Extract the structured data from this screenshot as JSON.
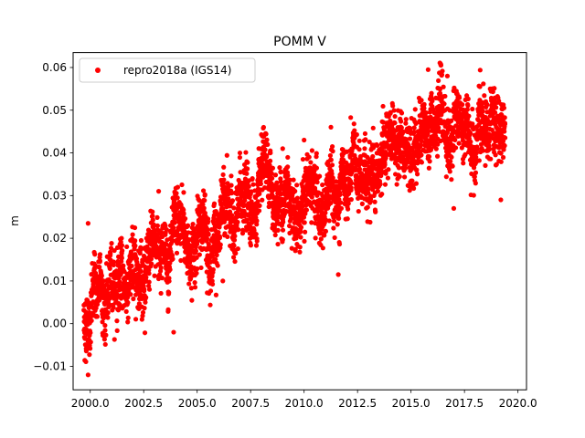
{
  "chart_data": {
    "type": "scatter",
    "title": "POMM V",
    "xlabel": "",
    "ylabel": "m",
    "xlim": [
      1999.2,
      2020.4
    ],
    "ylim": [
      -0.0155,
      0.0635
    ],
    "xticks": [
      2000.0,
      2002.5,
      2005.0,
      2007.5,
      2010.0,
      2012.5,
      2015.0,
      2017.5,
      2020.0
    ],
    "xtick_labels": [
      "2000.0",
      "2002.5",
      "2005.0",
      "2007.5",
      "2010.0",
      "2012.5",
      "2015.0",
      "2017.5",
      "2020.0"
    ],
    "yticks": [
      -0.01,
      0.0,
      0.01,
      0.02,
      0.03,
      0.04,
      0.05,
      0.06
    ],
    "ytick_labels": [
      "−0.01",
      "0.00",
      "0.01",
      "0.02",
      "0.03",
      "0.04",
      "0.05",
      "0.06"
    ],
    "grid": false,
    "legend_position": "top-left",
    "series": [
      {
        "name": "repro2018a (IGS14)",
        "color": "#ff0000",
        "marker": "circle",
        "x_range": [
          1999.7,
          2019.4
        ],
        "trend": [
          {
            "x": 1999.7,
            "y": 0.002
          },
          {
            "x": 2000.5,
            "y": 0.007
          },
          {
            "x": 2001.5,
            "y": 0.01
          },
          {
            "x": 2002.5,
            "y": 0.014
          },
          {
            "x": 2003.5,
            "y": 0.018
          },
          {
            "x": 2004.5,
            "y": 0.018
          },
          {
            "x": 2005.5,
            "y": 0.022
          },
          {
            "x": 2006.5,
            "y": 0.025
          },
          {
            "x": 2007.5,
            "y": 0.028
          },
          {
            "x": 2008.5,
            "y": 0.03
          },
          {
            "x": 2009.5,
            "y": 0.03
          },
          {
            "x": 2010.5,
            "y": 0.029
          },
          {
            "x": 2011.5,
            "y": 0.027
          },
          {
            "x": 2012.0,
            "y": 0.03
          },
          {
            "x": 2012.5,
            "y": 0.034
          },
          {
            "x": 2013.5,
            "y": 0.038
          },
          {
            "x": 2014.5,
            "y": 0.042
          },
          {
            "x": 2015.5,
            "y": 0.045
          },
          {
            "x": 2016.5,
            "y": 0.046
          },
          {
            "x": 2017.5,
            "y": 0.044
          },
          {
            "x": 2018.5,
            "y": 0.045
          },
          {
            "x": 2019.4,
            "y": 0.044
          }
        ],
        "scatter_sd": 0.0035,
        "outliers": [
          {
            "x": 1999.9,
            "y": 0.0235
          },
          {
            "x": 1999.9,
            "y": -0.012
          },
          {
            "x": 2003.2,
            "y": 0.031
          },
          {
            "x": 2003.9,
            "y": -0.002
          },
          {
            "x": 2006.2,
            "y": 0.01
          },
          {
            "x": 2007.0,
            "y": 0.04
          },
          {
            "x": 2009.0,
            "y": 0.041
          },
          {
            "x": 2010.0,
            "y": 0.043
          },
          {
            "x": 2011.6,
            "y": 0.0115
          },
          {
            "x": 2015.8,
            "y": 0.0595
          },
          {
            "x": 2016.7,
            "y": 0.058
          },
          {
            "x": 2017.0,
            "y": 0.027
          },
          {
            "x": 2018.7,
            "y": 0.055
          },
          {
            "x": 2019.2,
            "y": 0.029
          }
        ]
      }
    ]
  }
}
